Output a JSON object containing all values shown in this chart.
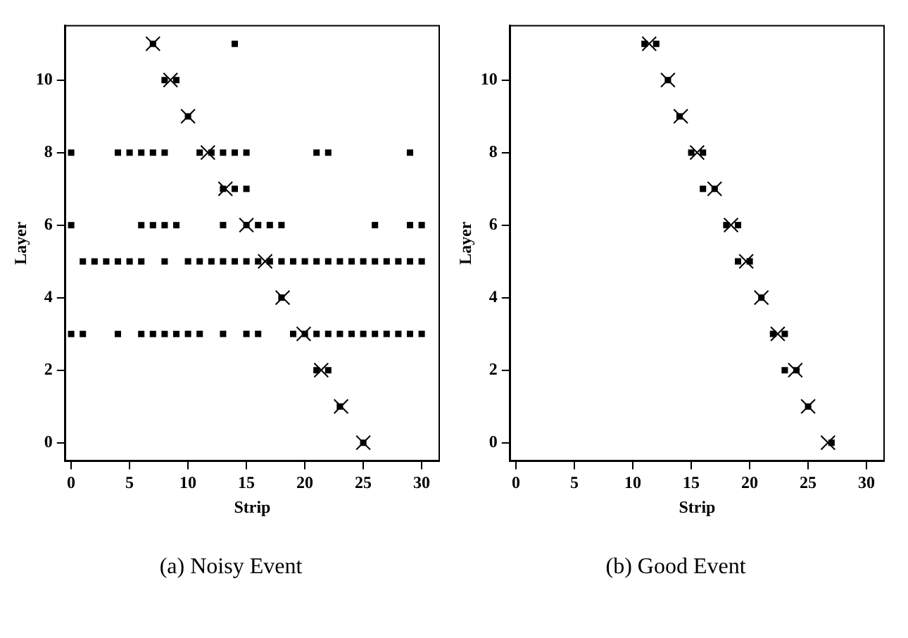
{
  "chart_data": [
    {
      "type": "scatter",
      "xlabel": "Strip",
      "ylabel": "Layer",
      "annotations": [
        "(a) Noisy Event"
      ],
      "xlim": [
        -0.5,
        31.5
      ],
      "ylim": [
        -0.5,
        11.5
      ],
      "xticks": [
        0,
        5,
        10,
        15,
        20,
        25,
        30
      ],
      "yticks": [
        0,
        2,
        4,
        6,
        8,
        10
      ],
      "grid": false,
      "legend": false,
      "series": [
        {
          "color": "#000000",
          "marker": "square",
          "x": [
            7,
            14,
            8,
            9,
            10,
            0,
            4,
            5,
            6,
            7,
            8,
            11,
            12,
            13,
            14,
            15,
            21,
            22,
            29,
            13,
            14,
            15,
            0,
            6,
            7,
            8,
            9,
            13,
            15,
            16,
            17,
            18,
            26,
            29,
            30,
            1,
            2,
            3,
            4,
            5,
            6,
            8,
            10,
            11,
            12,
            13,
            14,
            15,
            16,
            17,
            18,
            19,
            20,
            21,
            22,
            23,
            24,
            25,
            26,
            27,
            28,
            29,
            30,
            18,
            0,
            1,
            4,
            6,
            7,
            8,
            9,
            10,
            11,
            13,
            15,
            16,
            19,
            20,
            21,
            22,
            23,
            24,
            25,
            26,
            27,
            28,
            29,
            30,
            21,
            22,
            23,
            25
          ],
          "values": [
            11,
            11,
            10,
            10,
            9,
            8,
            8,
            8,
            8,
            8,
            8,
            8,
            8,
            8,
            8,
            8,
            8,
            8,
            8,
            7,
            7,
            7,
            6,
            6,
            6,
            6,
            6,
            6,
            6,
            6,
            6,
            6,
            6,
            6,
            6,
            5,
            5,
            5,
            5,
            5,
            5,
            5,
            5,
            5,
            5,
            5,
            5,
            5,
            5,
            5,
            5,
            5,
            5,
            5,
            5,
            5,
            5,
            5,
            5,
            5,
            5,
            5,
            5,
            4,
            3,
            3,
            3,
            3,
            3,
            3,
            3,
            3,
            3,
            3,
            3,
            3,
            3,
            3,
            3,
            3,
            3,
            3,
            3,
            3,
            3,
            3,
            3,
            3,
            2,
            2,
            1,
            0
          ]
        },
        {
          "color": "#000000",
          "marker": "cross",
          "x": [
            7,
            8.5,
            10,
            11.7,
            13.2,
            15,
            16.6,
            18.1,
            19.9,
            21.4,
            23.1,
            25
          ],
          "values": [
            11,
            10,
            9,
            8,
            7,
            6,
            5,
            4,
            3,
            2,
            1,
            0
          ]
        }
      ]
    },
    {
      "type": "scatter",
      "xlabel": "Strip",
      "ylabel": "Layer",
      "annotations": [
        "(b) Good Event"
      ],
      "xlim": [
        -0.5,
        31.5
      ],
      "ylim": [
        -0.5,
        11.5
      ],
      "xticks": [
        0,
        5,
        10,
        15,
        20,
        25,
        30
      ],
      "yticks": [
        0,
        2,
        4,
        6,
        8,
        10
      ],
      "grid": false,
      "legend": false,
      "series": [
        {
          "color": "#000000",
          "marker": "square",
          "x": [
            11,
            12,
            13,
            14,
            15,
            16,
            16,
            17,
            18,
            19,
            19,
            20,
            21,
            22,
            23,
            23,
            24,
            25,
            27
          ],
          "values": [
            11,
            11,
            10,
            9,
            8,
            8,
            7,
            7,
            6,
            6,
            5,
            5,
            4,
            3,
            3,
            2,
            2,
            1,
            0
          ]
        },
        {
          "color": "#000000",
          "marker": "cross",
          "x": [
            11.4,
            13,
            14.1,
            15.5,
            17,
            18.4,
            19.7,
            21,
            22.4,
            23.9,
            25,
            26.7
          ],
          "values": [
            11,
            10,
            9,
            8,
            7,
            6,
            5,
            4,
            3,
            2,
            1,
            0
          ]
        }
      ]
    }
  ]
}
